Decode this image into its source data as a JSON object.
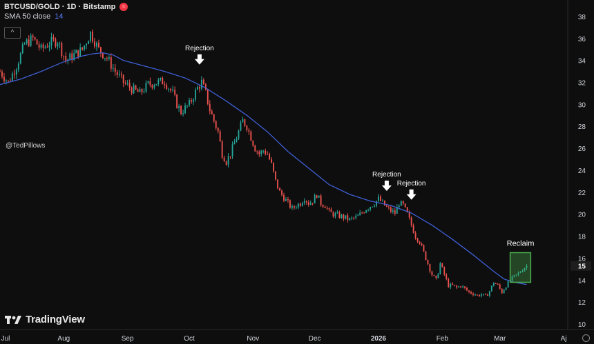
{
  "legend": {
    "symbol": "BTCUSD/GOLD · 1D · Bitstamp",
    "indicator_name": "SMA 50 close",
    "indicator_value": "14"
  },
  "collapse_label": "^",
  "watermark_user": "@TedPillows",
  "brand": "TradingView",
  "colors": {
    "up": "#26a69a",
    "down": "#ef5350",
    "sma": "#3f5fd6",
    "reclaim_box": "#4caf50",
    "background": "#0e0e0e"
  },
  "chart_data": {
    "type": "candlestick",
    "title": "BTCUSD/GOLD · 1D · Bitstamp",
    "y_axis_ticks": [
      10,
      12,
      14,
      16,
      18,
      20,
      22,
      24,
      26,
      28,
      30,
      32,
      34,
      36,
      38
    ],
    "ylim": [
      9.5,
      39.5
    ],
    "current_price_label": "15",
    "x_axis_ticks": [
      {
        "label": "Jul",
        "day": 0
      },
      {
        "label": "Aug",
        "day": 31
      },
      {
        "label": "Sep",
        "day": 62
      },
      {
        "label": "Oct",
        "day": 92
      },
      {
        "label": "Nov",
        "day": 123
      },
      {
        "label": "Dec",
        "day": 153
      },
      {
        "label": "2026",
        "day": 184
      },
      {
        "label": "Feb",
        "day": 215
      },
      {
        "label": "Mar",
        "day": 243
      },
      {
        "label": "Aj",
        "day": 274
      }
    ],
    "xlim_days": [
      0,
      276
    ],
    "price_path": [
      [
        0,
        33.0
      ],
      [
        4,
        32.0
      ],
      [
        8,
        33.5
      ],
      [
        12,
        35.5
      ],
      [
        16,
        36.0
      ],
      [
        20,
        35.0
      ],
      [
        24,
        35.6
      ],
      [
        28,
        35.8
      ],
      [
        32,
        34.0
      ],
      [
        36,
        34.5
      ],
      [
        40,
        35.0
      ],
      [
        44,
        36.5
      ],
      [
        48,
        35.0
      ],
      [
        52,
        34.2
      ],
      [
        56,
        33.0
      ],
      [
        60,
        32.0
      ],
      [
        64,
        31.4
      ],
      [
        68,
        31.0
      ],
      [
        72,
        31.8
      ],
      [
        76,
        32.0
      ],
      [
        80,
        32.1
      ],
      [
        84,
        31.0
      ],
      [
        86,
        30.0
      ],
      [
        88,
        29.3
      ],
      [
        92,
        30.0
      ],
      [
        96,
        31.5
      ],
      [
        98,
        32.0
      ],
      [
        100,
        31.0
      ],
      [
        102,
        29.5
      ],
      [
        104,
        28.5
      ],
      [
        106,
        27.5
      ],
      [
        108,
        25.5
      ],
      [
        110,
        24.8
      ],
      [
        112,
        25.5
      ],
      [
        114,
        26.5
      ],
      [
        116,
        27.5
      ],
      [
        118,
        28.5
      ],
      [
        120,
        28.0
      ],
      [
        122,
        27.0
      ],
      [
        124,
        26.0
      ],
      [
        126,
        25.5
      ],
      [
        128,
        25.8
      ],
      [
        130,
        25.5
      ],
      [
        132,
        24.5
      ],
      [
        134,
        23.0
      ],
      [
        136,
        22.0
      ],
      [
        138,
        21.5
      ],
      [
        140,
        21.0
      ],
      [
        142,
        20.5
      ],
      [
        144,
        20.8
      ],
      [
        146,
        21.0
      ],
      [
        148,
        21.5
      ],
      [
        150,
        21.0
      ],
      [
        152,
        21.2
      ],
      [
        154,
        21.8
      ],
      [
        156,
        21.0
      ],
      [
        158,
        20.8
      ],
      [
        160,
        20.2
      ],
      [
        162,
        20.0
      ],
      [
        166,
        19.8
      ],
      [
        170,
        19.5
      ],
      [
        174,
        19.8
      ],
      [
        178,
        20.5
      ],
      [
        182,
        21.0
      ],
      [
        184,
        21.4
      ],
      [
        186,
        21.0
      ],
      [
        188,
        20.6
      ],
      [
        190,
        20.3
      ],
      [
        192,
        20.1
      ],
      [
        194,
        21.0
      ],
      [
        196,
        20.8
      ],
      [
        198,
        20.0
      ],
      [
        200,
        19.0
      ],
      [
        202,
        18.0
      ],
      [
        204,
        17.5
      ],
      [
        206,
        16.5
      ],
      [
        208,
        15.5
      ],
      [
        210,
        14.5
      ],
      [
        212,
        14.0
      ],
      [
        214,
        15.5
      ],
      [
        216,
        14.5
      ],
      [
        218,
        13.5
      ],
      [
        220,
        13.5
      ],
      [
        222,
        13.3
      ],
      [
        224,
        13.5
      ],
      [
        226,
        13.2
      ],
      [
        228,
        12.9
      ],
      [
        230,
        12.8
      ],
      [
        232,
        12.6
      ],
      [
        234,
        12.7
      ],
      [
        236,
        12.5
      ],
      [
        238,
        13.0
      ],
      [
        240,
        13.8
      ],
      [
        242,
        13.5
      ],
      [
        244,
        12.9
      ],
      [
        246,
        13.5
      ],
      [
        248,
        14.0
      ],
      [
        250,
        14.3
      ],
      [
        252,
        14.6
      ],
      [
        254,
        15.0
      ],
      [
        256,
        15.3
      ]
    ],
    "sma_50": [
      [
        0,
        31.8
      ],
      [
        10,
        32.3
      ],
      [
        20,
        33.0
      ],
      [
        30,
        33.8
      ],
      [
        40,
        34.4
      ],
      [
        45,
        34.6
      ],
      [
        50,
        34.7
      ],
      [
        55,
        34.5
      ],
      [
        60,
        34.0
      ],
      [
        70,
        33.5
      ],
      [
        80,
        33.0
      ],
      [
        90,
        32.4
      ],
      [
        100,
        31.5
      ],
      [
        110,
        30.3
      ],
      [
        120,
        29.0
      ],
      [
        130,
        27.5
      ],
      [
        140,
        25.7
      ],
      [
        150,
        24.2
      ],
      [
        160,
        22.7
      ],
      [
        170,
        21.8
      ],
      [
        180,
        21.2
      ],
      [
        190,
        20.8
      ],
      [
        200,
        20.1
      ],
      [
        210,
        19.0
      ],
      [
        220,
        17.7
      ],
      [
        230,
        16.3
      ],
      [
        240,
        14.8
      ],
      [
        245,
        14.1
      ],
      [
        250,
        13.8
      ],
      [
        256,
        13.6
      ]
    ],
    "annotations": [
      {
        "text": "Rejection",
        "type": "arrow-down",
        "day": 97,
        "value": 33.3
      },
      {
        "text": "Rejection",
        "type": "arrow-down",
        "day": 188,
        "value": 21.8
      },
      {
        "text": "Rejection",
        "type": "arrow-down",
        "day": 200,
        "value": 21.0
      },
      {
        "text": "Reclaim",
        "type": "box",
        "day_range": [
          248,
          258
        ],
        "value_range": [
          13.8,
          16.5
        ]
      }
    ],
    "grid": false,
    "legend_position": "top-left"
  }
}
